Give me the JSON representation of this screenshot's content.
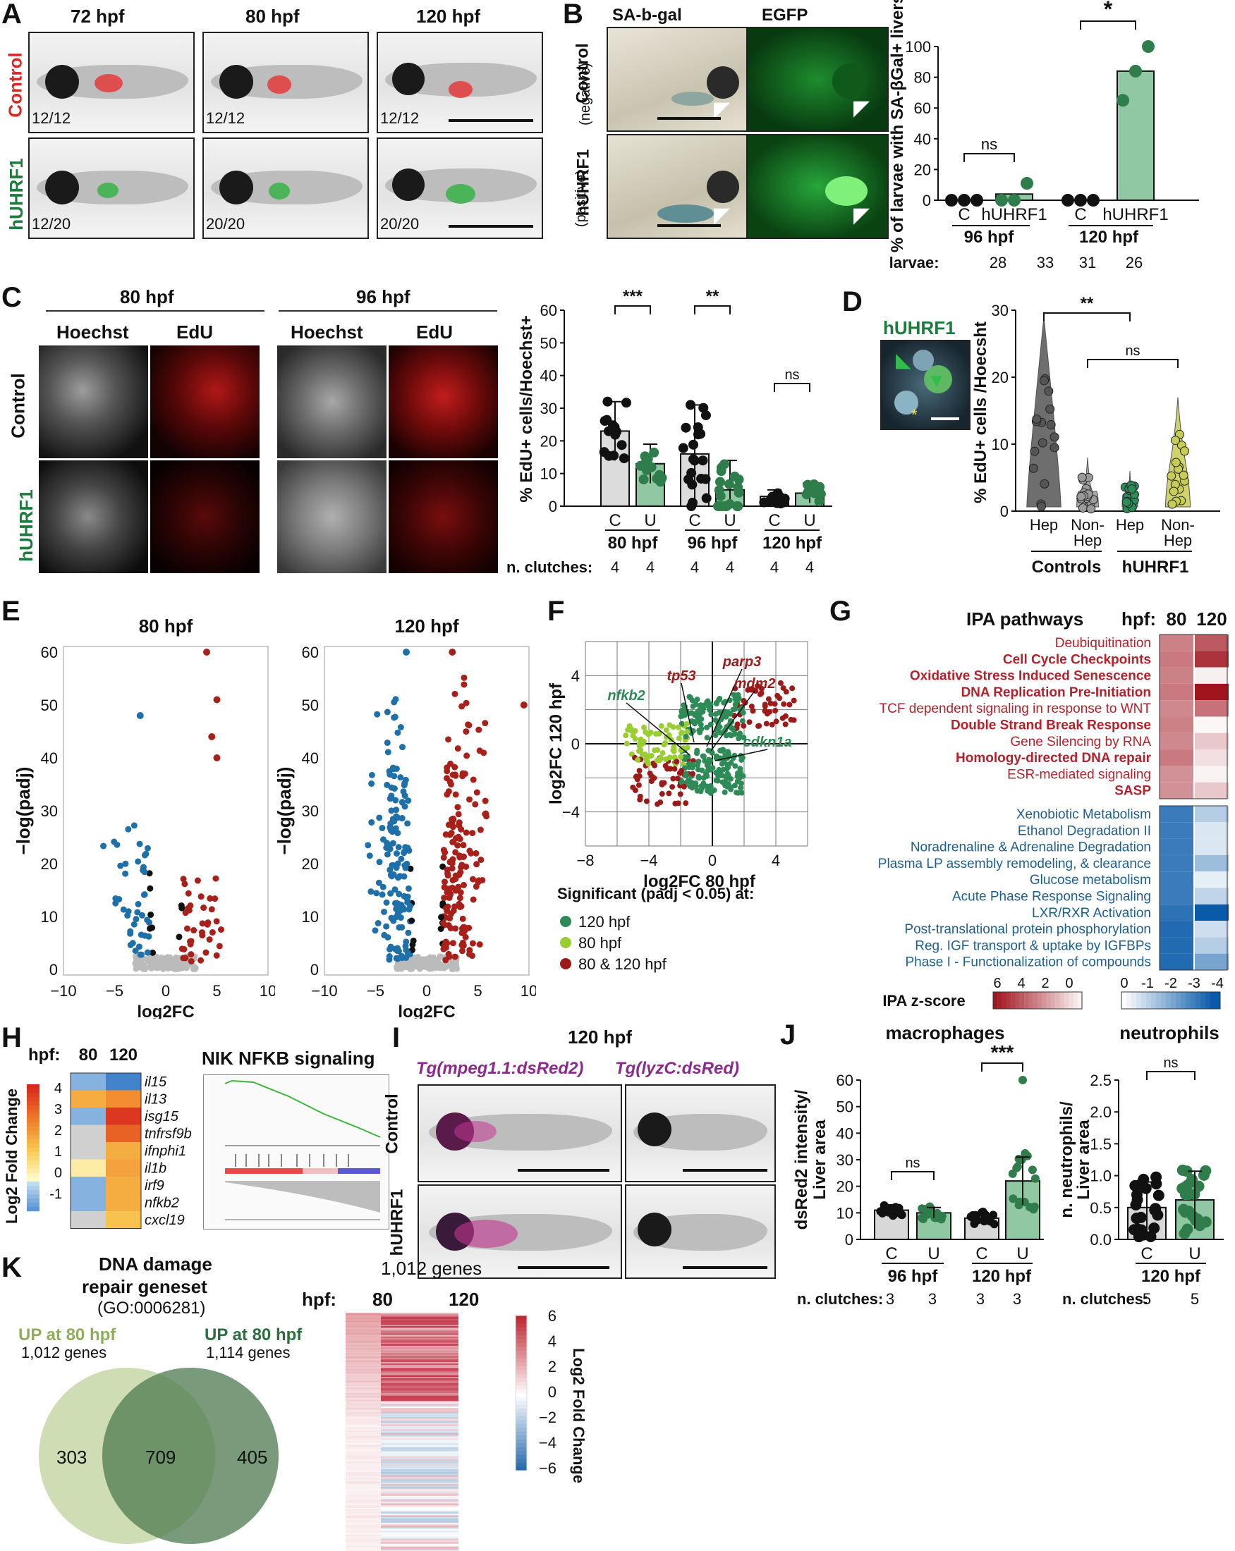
{
  "letters": {
    "A": "A",
    "B": "B",
    "C": "C",
    "D": "D",
    "E": "E",
    "F": "F",
    "G": "G",
    "H": "H",
    "I": "I",
    "J": "J",
    "K": "K"
  },
  "panelA": {
    "cols": [
      "72 hpf",
      "80 hpf",
      "120 hpf"
    ],
    "rows": [
      "Control",
      "hUHRF1"
    ],
    "counts": [
      [
        "12/12",
        "12/12",
        "12/12"
      ],
      [
        "12/20",
        "20/20",
        "20/20"
      ]
    ]
  },
  "panelB": {
    "cols": [
      "SA-b-gal",
      "EGFP"
    ],
    "rows": [
      [
        "Control",
        "(negative)"
      ],
      [
        "hUHRF1",
        "(positive)"
      ]
    ],
    "chart_data": {
      "type": "bar",
      "ylabel": "% of larvae with SA-βGal+ livers",
      "ylim": [
        0,
        100
      ],
      "yticks": [
        "0",
        "20",
        "40",
        "60",
        "80",
        "100"
      ],
      "categories": [
        "C",
        "hUHRF1",
        "C",
        "hUHRF1"
      ],
      "groups": [
        "96 hpf",
        "120 hpf"
      ],
      "values": [
        0,
        4,
        0,
        84
      ],
      "points": [
        [
          0,
          0,
          0
        ],
        [
          0,
          0,
          11
        ],
        [
          0,
          0,
          0
        ],
        [
          65,
          84,
          100
        ]
      ],
      "sig": [
        {
          "label": "ns",
          "between": [
            0,
            1
          ]
        },
        {
          "label": "*",
          "between": [
            2,
            3
          ]
        }
      ],
      "n_label": "n. larvae:",
      "n": [
        "28",
        "33",
        "31",
        "26"
      ]
    }
  },
  "panelC": {
    "times": [
      "80 hpf",
      "96 hpf"
    ],
    "channels": [
      "Hoechst",
      "EdU",
      "Hoechst",
      "EdU"
    ],
    "rows": [
      "Control",
      "hUHRF1"
    ],
    "chart_data": {
      "type": "bar",
      "ylabel": "% EdU+ cells/Hoechst+",
      "ylim": [
        0,
        60
      ],
      "yticks": [
        "0",
        "10",
        "20",
        "30",
        "40",
        "50",
        "60"
      ],
      "categories": [
        "C",
        "U",
        "C",
        "U",
        "C",
        "U"
      ],
      "groups": [
        "80 hpf",
        "96 hpf",
        "120 hpf"
      ],
      "values": [
        23,
        13,
        16,
        5,
        3,
        4
      ],
      "errors": [
        9,
        6,
        15,
        9,
        2,
        3
      ],
      "sig": [
        {
          "label": "***",
          "between": [
            0,
            1
          ]
        },
        {
          "label": "**",
          "between": [
            2,
            3
          ]
        },
        {
          "label": "ns",
          "between": [
            4,
            5
          ]
        }
      ],
      "n_label": "n. clutches:",
      "n": [
        "4",
        "4",
        "4",
        "4",
        "4",
        "4"
      ]
    }
  },
  "panelD": {
    "inset_title": "hUHRF1",
    "chart_data": {
      "type": "violin",
      "ylabel": "% EdU+ cells /Hoecsht",
      "ylim": [
        0,
        30
      ],
      "yticks": [
        "0",
        "10",
        "20",
        "30"
      ],
      "categories": [
        "Hep",
        "Non-Hep",
        "Hep",
        "Non-Hep"
      ],
      "groups": [
        "Controls",
        "hUHRF1"
      ],
      "sig": [
        {
          "label": "**",
          "between": [
            0,
            2
          ]
        },
        {
          "label": "ns",
          "between": [
            1,
            3
          ]
        }
      ],
      "colors": [
        "#555555",
        "#9a9a9a",
        "#2e8b57",
        "#c7cc55"
      ]
    }
  },
  "panelE": {
    "chart_data": [
      {
        "type": "scatter",
        "title": "80 hpf",
        "xlabel": "log2FC",
        "ylabel": "−log(padj)",
        "xlim": [
          -10,
          10
        ],
        "ylim": [
          0,
          60
        ],
        "xticks": [
          "−10",
          "−5",
          "0",
          "5",
          "10"
        ],
        "yticks": [
          "0",
          "10",
          "20",
          "30",
          "40",
          "50",
          "60"
        ]
      },
      {
        "type": "scatter",
        "title": "120 hpf",
        "xlabel": "log2FC",
        "ylabel": "−log(padj)",
        "xlim": [
          -10,
          10
        ],
        "ylim": [
          0,
          60
        ],
        "xticks": [
          "−10",
          "−5",
          "0",
          "5",
          "10"
        ],
        "yticks": [
          "0",
          "10",
          "20",
          "30",
          "40",
          "50",
          "60"
        ]
      }
    ]
  },
  "panelF": {
    "chart_data": {
      "type": "scatter",
      "xlabel": "log2FC 80 hpf",
      "ylabel": "log2FC 120 hpf",
      "xlim": [
        -8,
        6
      ],
      "ylim": [
        -6,
        6
      ],
      "xticks": [
        "−8",
        "−4",
        "0",
        "4"
      ],
      "yticks": [
        "−4",
        "0",
        "4"
      ],
      "genes": [
        "tp53",
        "parp3",
        "mdm2",
        "nfkb2",
        "cdkn1a"
      ],
      "legend_title": "Significant (padj < 0.05) at:",
      "legend": [
        {
          "name": "120 hpf",
          "color": "#2e8b57"
        },
        {
          "name": "80 hpf",
          "color": "#9acd32"
        },
        {
          "name": "80 & 120 hpf",
          "color": "#9b1b1b"
        }
      ]
    }
  },
  "panelG": {
    "title": "IPA pathways",
    "hpf_label": "hpf:",
    "cols": [
      "80",
      "120"
    ],
    "up": [
      {
        "name": "Deubiquitination",
        "bold": false,
        "v": [
          3.2,
          4.2
        ]
      },
      {
        "name": "Cell Cycle Checkpoints",
        "bold": true,
        "v": [
          3.4,
          5.2
        ]
      },
      {
        "name": "Oxidative Stress Induced Senescence",
        "bold": true,
        "v": [
          3.2,
          0.4
        ]
      },
      {
        "name": "DNA Replication Pre-Initiation",
        "bold": true,
        "v": [
          3.4,
          6
        ]
      },
      {
        "name": "TCF dependent signaling in response to WNT",
        "bold": false,
        "v": [
          3,
          3.6
        ]
      },
      {
        "name": "Double Strand Break Response",
        "bold": true,
        "v": [
          3.2,
          0.2
        ]
      },
      {
        "name": "Gene Silencing by RNA",
        "bold": false,
        "v": [
          3,
          1.4
        ]
      },
      {
        "name": "Homology-directed DNA repair",
        "bold": true,
        "v": [
          3.4,
          0.8
        ]
      },
      {
        "name": "ESR-mediated signaling",
        "bold": false,
        "v": [
          2.8,
          0.3
        ]
      },
      {
        "name": "SASP",
        "bold": true,
        "v": [
          2.8,
          1.4
        ]
      }
    ],
    "down": [
      {
        "name": "Xenobiotic Metabolism",
        "v": [
          -3.2,
          -1.2
        ]
      },
      {
        "name": "Ethanol Degradation II",
        "v": [
          -3.2,
          -0.6
        ]
      },
      {
        "name": "Noradrenaline & Adrenaline Degradation",
        "v": [
          -3.2,
          -0.6
        ]
      },
      {
        "name": "Plasma LP assembly remodeling, & clearance",
        "v": [
          -3.2,
          -1.6
        ]
      },
      {
        "name": "Glucose metabolism",
        "v": [
          -3.2,
          -0.4
        ]
      },
      {
        "name": "Acute Phase Response Signaling",
        "v": [
          -3.2,
          -1
        ]
      },
      {
        "name": "LXR/RXR Activation",
        "v": [
          -3.4,
          -4.2
        ]
      },
      {
        "name": "Post-translational protein phosphorylation",
        "v": [
          -3.6,
          -0.8
        ]
      },
      {
        "name": "Reg. IGF transport & uptake by IGFBPs",
        "v": [
          -3.6,
          -1.2
        ]
      },
      {
        "name": "Phase I - Functionalization of compounds",
        "v": [
          -3.6,
          -2.2
        ]
      }
    ],
    "scale_label": "IPA z-score",
    "pos_ticks": [
      "6",
      "4",
      "2",
      "0"
    ],
    "neg_ticks": [
      "0",
      "-1",
      "-2",
      "-3",
      "-4"
    ]
  },
  "panelH": {
    "hpf_label": "hpf:",
    "cols": [
      "80",
      "120"
    ],
    "genes": [
      "il15",
      "il13",
      "isg15",
      "tnfrsf9b",
      "ifnphi1",
      "il1b",
      "irf9",
      "nfkb2",
      "cxcl19"
    ],
    "v": [
      [
        -0.8,
        -1.6
      ],
      [
        2,
        2.6
      ],
      [
        -0.8,
        4.2
      ],
      [
        null,
        3.4
      ],
      [
        null,
        2
      ],
      [
        0.5,
        2.2
      ],
      [
        -0.8,
        2
      ],
      [
        -0.8,
        2
      ],
      [
        null,
        1.6
      ]
    ],
    "scale_label": "Log2 Fold Change",
    "ticks": [
      "4",
      "3",
      "2",
      "1",
      "0",
      "-1"
    ],
    "gsea_title": "NIK NFKB signaling"
  },
  "panelI": {
    "title": "120 hpf",
    "cols": [
      "Tg(mpeg1.1:dsRed2)",
      "Tg(lyzC:dsRed)"
    ],
    "rows": [
      "Control",
      "hUHRF1"
    ]
  },
  "panelJ": {
    "chart_data": [
      {
        "type": "bar",
        "title": "macrophages",
        "ylabel": "dsRed2 intensity/ Liver area",
        "ylim": [
          0,
          60
        ],
        "yticks": [
          "0",
          "10",
          "20",
          "30",
          "40",
          "50",
          "60"
        ],
        "categories": [
          "C",
          "U",
          "C",
          "U"
        ],
        "groups": [
          "96 hpf",
          "120 hpf"
        ],
        "values": [
          11,
          10,
          8,
          22
        ],
        "errors": [
          2,
          2,
          2,
          9
        ],
        "sig": [
          {
            "label": "ns",
            "between": [
              0,
              1
            ]
          },
          {
            "label": "***",
            "between": [
              2,
              3
            ]
          }
        ],
        "n_label": "n. clutches:",
        "n": [
          "3",
          "3",
          "3",
          "3"
        ]
      },
      {
        "type": "bar",
        "title": "neutrophils",
        "ylabel": "n. neutrophils/ Liver area",
        "ylim": [
          0,
          2.5
        ],
        "yticks": [
          "0.0",
          "0.5",
          "1.0",
          "1.5",
          "2.0",
          "2.5"
        ],
        "categories": [
          "C",
          "U"
        ],
        "groups": [
          "120 hpf"
        ],
        "values": [
          0.5,
          0.62
        ],
        "errors": [
          0.4,
          0.45
        ],
        "sig": [
          {
            "label": "ns",
            "between": [
              0,
              1
            ]
          }
        ],
        "n_label": "n. clutches:",
        "n": [
          "5",
          "5"
        ]
      }
    ]
  },
  "panelK": {
    "title": [
      "DNA damage",
      "repair geneset",
      "(GO:0006281)"
    ],
    "left_label": "UP at 80 hpf",
    "left_genes": "1,012 genes",
    "right_label": "UP at 80 hpf",
    "right_genes": "1,114 genes",
    "venn": [
      "303",
      "709",
      "405"
    ],
    "heat_title": "1,012 genes",
    "hpf_label": "hpf:",
    "cols": [
      "80",
      "120"
    ],
    "scale_label": "Log2 Fold Change",
    "ticks": [
      "6",
      "4",
      "2",
      "0",
      "−2",
      "−4",
      "−6"
    ]
  }
}
